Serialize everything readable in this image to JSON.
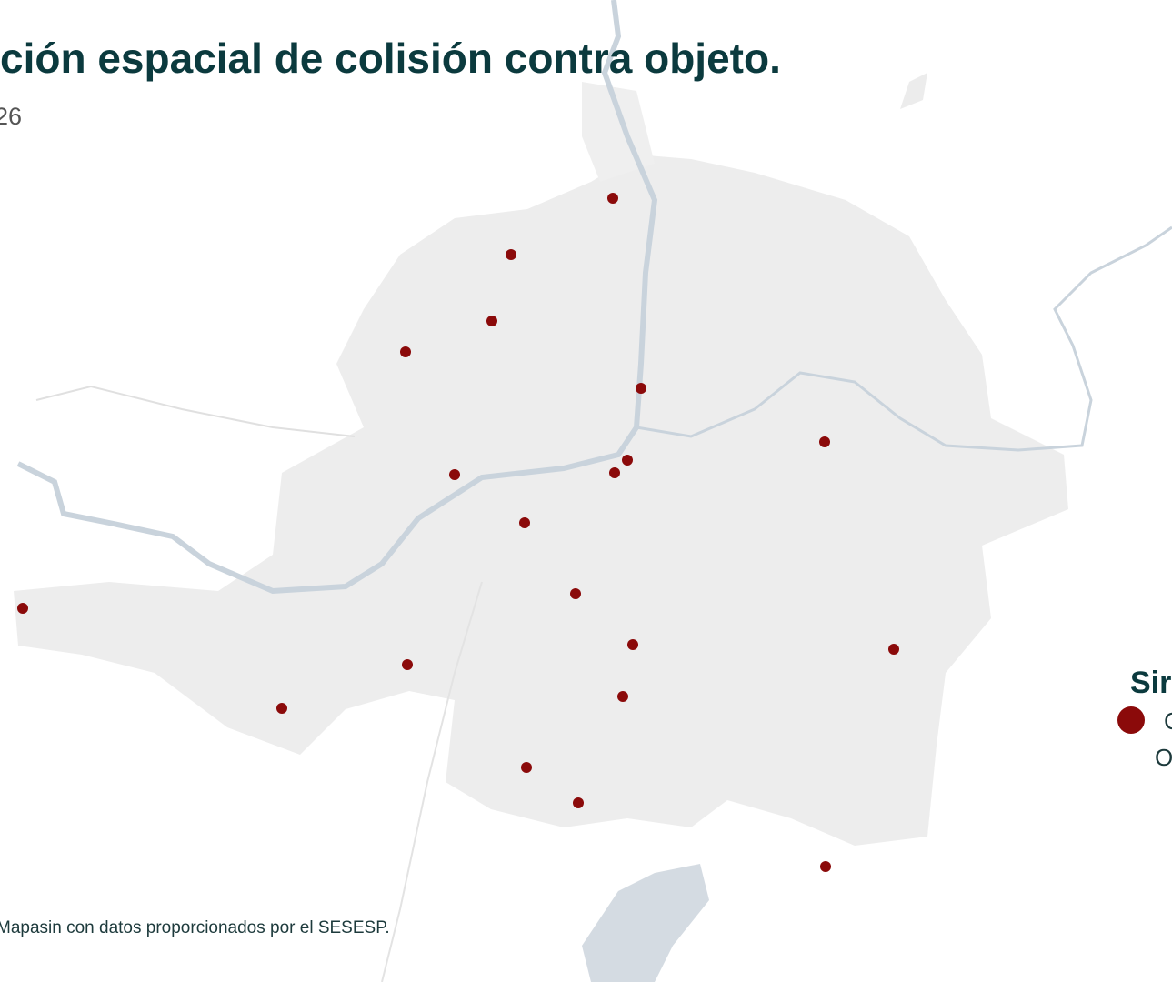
{
  "header": {
    "title": "ción espacial de colisión contra objeto.",
    "subtitle": "26"
  },
  "legend": {
    "title": "Sir",
    "items": [
      {
        "label": "C",
        "sublabel": "O"
      }
    ]
  },
  "source": "Mapasin con datos proporcionados por el SESESP."
}
